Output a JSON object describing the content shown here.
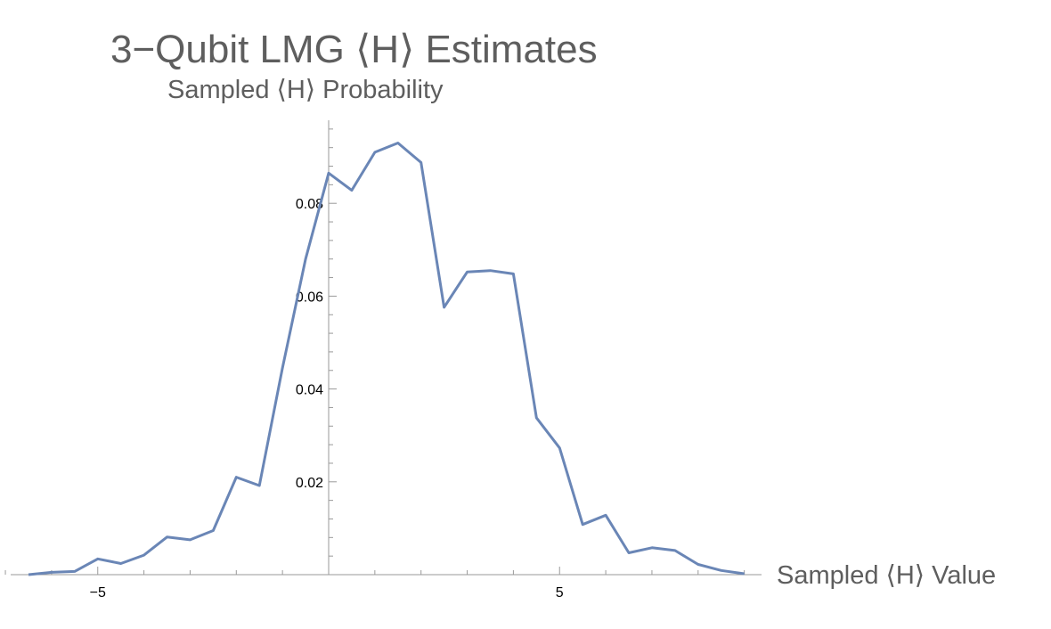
{
  "chart_data": {
    "type": "line",
    "title": "3−Qubit LMG ⟨H⟩ Estimates",
    "ylabel": "Sampled ⟨H⟩ Probability",
    "xlabel": "Sampled ⟨H⟩ Value",
    "xlim": [
      -6.9,
      9.2
    ],
    "ylim": [
      0,
      0.097
    ],
    "x_ticks": [
      {
        "value": -5,
        "label": "−5"
      },
      {
        "value": 5,
        "label": "5"
      }
    ],
    "y_ticks": [
      {
        "value": 0.02,
        "label": "0.02"
      },
      {
        "value": 0.04,
        "label": "0.04"
      },
      {
        "value": 0.06,
        "label": "0.06"
      },
      {
        "value": 0.08,
        "label": "0.08"
      }
    ],
    "grid": false,
    "series_color": "#6a86b6",
    "series": [
      {
        "x": [
          -6.5,
          -6.0,
          -5.5,
          -5.0,
          -4.5,
          -4.0,
          -3.5,
          -3.0,
          -2.5,
          -2.0,
          -1.5,
          -1.0,
          -0.5,
          0.0,
          0.5,
          1.0,
          1.5,
          2.0,
          2.5,
          3.0,
          3.5,
          4.0,
          4.5,
          5.0,
          5.5,
          6.0,
          6.5,
          7.0,
          7.5,
          8.0,
          8.5,
          9.0
        ],
        "values": [
          0.0,
          0.0005,
          0.0007,
          0.0034,
          0.0024,
          0.0042,
          0.0081,
          0.0075,
          0.0095,
          0.021,
          0.0192,
          0.0445,
          0.068,
          0.0865,
          0.0828,
          0.091,
          0.093,
          0.0888,
          0.0576,
          0.0652,
          0.0655,
          0.0648,
          0.0338,
          0.0273,
          0.0108,
          0.0128,
          0.0047,
          0.0058,
          0.0052,
          0.0022,
          0.0009,
          0.0002
        ]
      }
    ]
  }
}
